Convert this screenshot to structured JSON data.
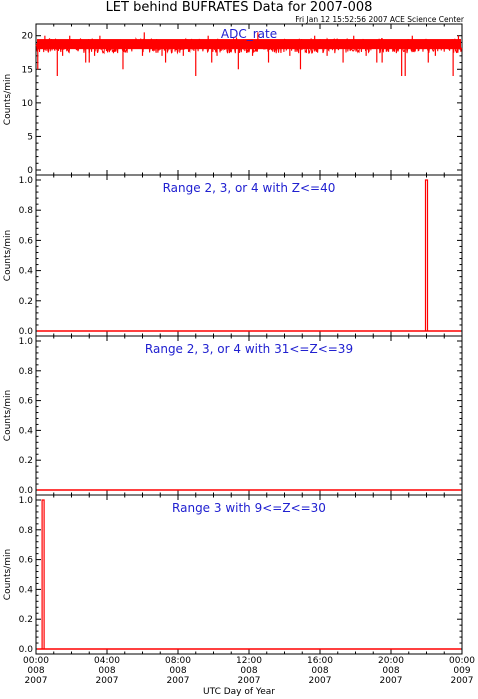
{
  "title": "LET behind BUFRATES Data for 2007-008",
  "timestamp": "Fri Jan 12 15:52:56 2007 ACE Science Center",
  "xlabel": "UTC Day of Year",
  "xticks": [
    {
      "time": "00:00",
      "doy": "008",
      "year": "2007"
    },
    {
      "time": "04:00",
      "doy": "008",
      "year": "2007"
    },
    {
      "time": "08:00",
      "doy": "008",
      "year": "2007"
    },
    {
      "time": "12:00",
      "doy": "008",
      "year": "2007"
    },
    {
      "time": "16:00",
      "doy": "008",
      "year": "2007"
    },
    {
      "time": "20:00",
      "doy": "008",
      "year": "2007"
    },
    {
      "time": "00:00",
      "doy": "009",
      "year": "2007"
    }
  ],
  "colors": {
    "data": "#ff0000",
    "label": "#2020d0",
    "axis": "#000000"
  },
  "chart_data": [
    {
      "type": "line",
      "label": "ADC_rate",
      "ylabel": "Counts/min",
      "ylim": [
        0,
        21
      ],
      "yticks": [
        "0",
        "5",
        "10",
        "15",
        "20"
      ],
      "xlim_hours": [
        0,
        24
      ],
      "baseline": 18.5,
      "dips": [
        {
          "x": 0.1,
          "y": 15
        },
        {
          "x": 1.2,
          "y": 14
        },
        {
          "x": 1.5,
          "y": 17
        },
        {
          "x": 2.8,
          "y": 16
        },
        {
          "x": 3.0,
          "y": 16
        },
        {
          "x": 3.3,
          "y": 17
        },
        {
          "x": 4.9,
          "y": 15
        },
        {
          "x": 6.0,
          "y": 17
        },
        {
          "x": 7.1,
          "y": 17
        },
        {
          "x": 7.3,
          "y": 16
        },
        {
          "x": 8.3,
          "y": 17
        },
        {
          "x": 9.0,
          "y": 14
        },
        {
          "x": 9.9,
          "y": 16
        },
        {
          "x": 10.2,
          "y": 17
        },
        {
          "x": 11.4,
          "y": 15
        },
        {
          "x": 12.2,
          "y": 17
        },
        {
          "x": 13.1,
          "y": 16
        },
        {
          "x": 14.3,
          "y": 17
        },
        {
          "x": 14.9,
          "y": 15
        },
        {
          "x": 16.4,
          "y": 17
        },
        {
          "x": 17.3,
          "y": 16
        },
        {
          "x": 18.6,
          "y": 17
        },
        {
          "x": 19.2,
          "y": 16
        },
        {
          "x": 19.5,
          "y": 16
        },
        {
          "x": 20.6,
          "y": 14
        },
        {
          "x": 20.8,
          "y": 14
        },
        {
          "x": 22.1,
          "y": 16
        },
        {
          "x": 22.5,
          "y": 17
        },
        {
          "x": 23.5,
          "y": 14
        }
      ],
      "peaks": [
        {
          "x": 0.5,
          "y": 20
        },
        {
          "x": 1.9,
          "y": 20
        },
        {
          "x": 3.6,
          "y": 20
        },
        {
          "x": 6.1,
          "y": 20.5
        },
        {
          "x": 9.7,
          "y": 20
        },
        {
          "x": 12.5,
          "y": 20.5
        },
        {
          "x": 15.7,
          "y": 20
        },
        {
          "x": 17.9,
          "y": 20
        },
        {
          "x": 21.2,
          "y": 20
        },
        {
          "x": 23.8,
          "y": 20
        }
      ]
    },
    {
      "type": "line",
      "label": "Range 2, 3, or 4 with Z<=40",
      "ylabel": "Counts/min",
      "ylim": [
        0,
        1
      ],
      "yticks": [
        "0.0",
        "0.2",
        "0.4",
        "0.6",
        "0.8",
        "1.0"
      ],
      "xlim_hours": [
        0,
        24
      ],
      "baseline": 0,
      "spikes": [
        {
          "x": 22.0,
          "y": 1.0
        }
      ]
    },
    {
      "type": "line",
      "label": "Range 2, 3, or 4 with 31<=Z<=39",
      "ylabel": "Counts/min",
      "ylim": [
        0,
        1
      ],
      "yticks": [
        "0.0",
        "0.2",
        "0.4",
        "0.6",
        "0.8",
        "1.0"
      ],
      "xlim_hours": [
        0,
        24
      ],
      "baseline": 0,
      "spikes": []
    },
    {
      "type": "line",
      "label": "Range 3 with 9<=Z<=30",
      "ylabel": "Counts/min",
      "ylim": [
        0,
        1
      ],
      "yticks": [
        "0.0",
        "0.2",
        "0.4",
        "0.6",
        "0.8",
        "1.0"
      ],
      "xlim_hours": [
        0,
        24
      ],
      "baseline": 0,
      "spikes": [
        {
          "x": 0.4,
          "y": 1.0
        }
      ]
    }
  ]
}
